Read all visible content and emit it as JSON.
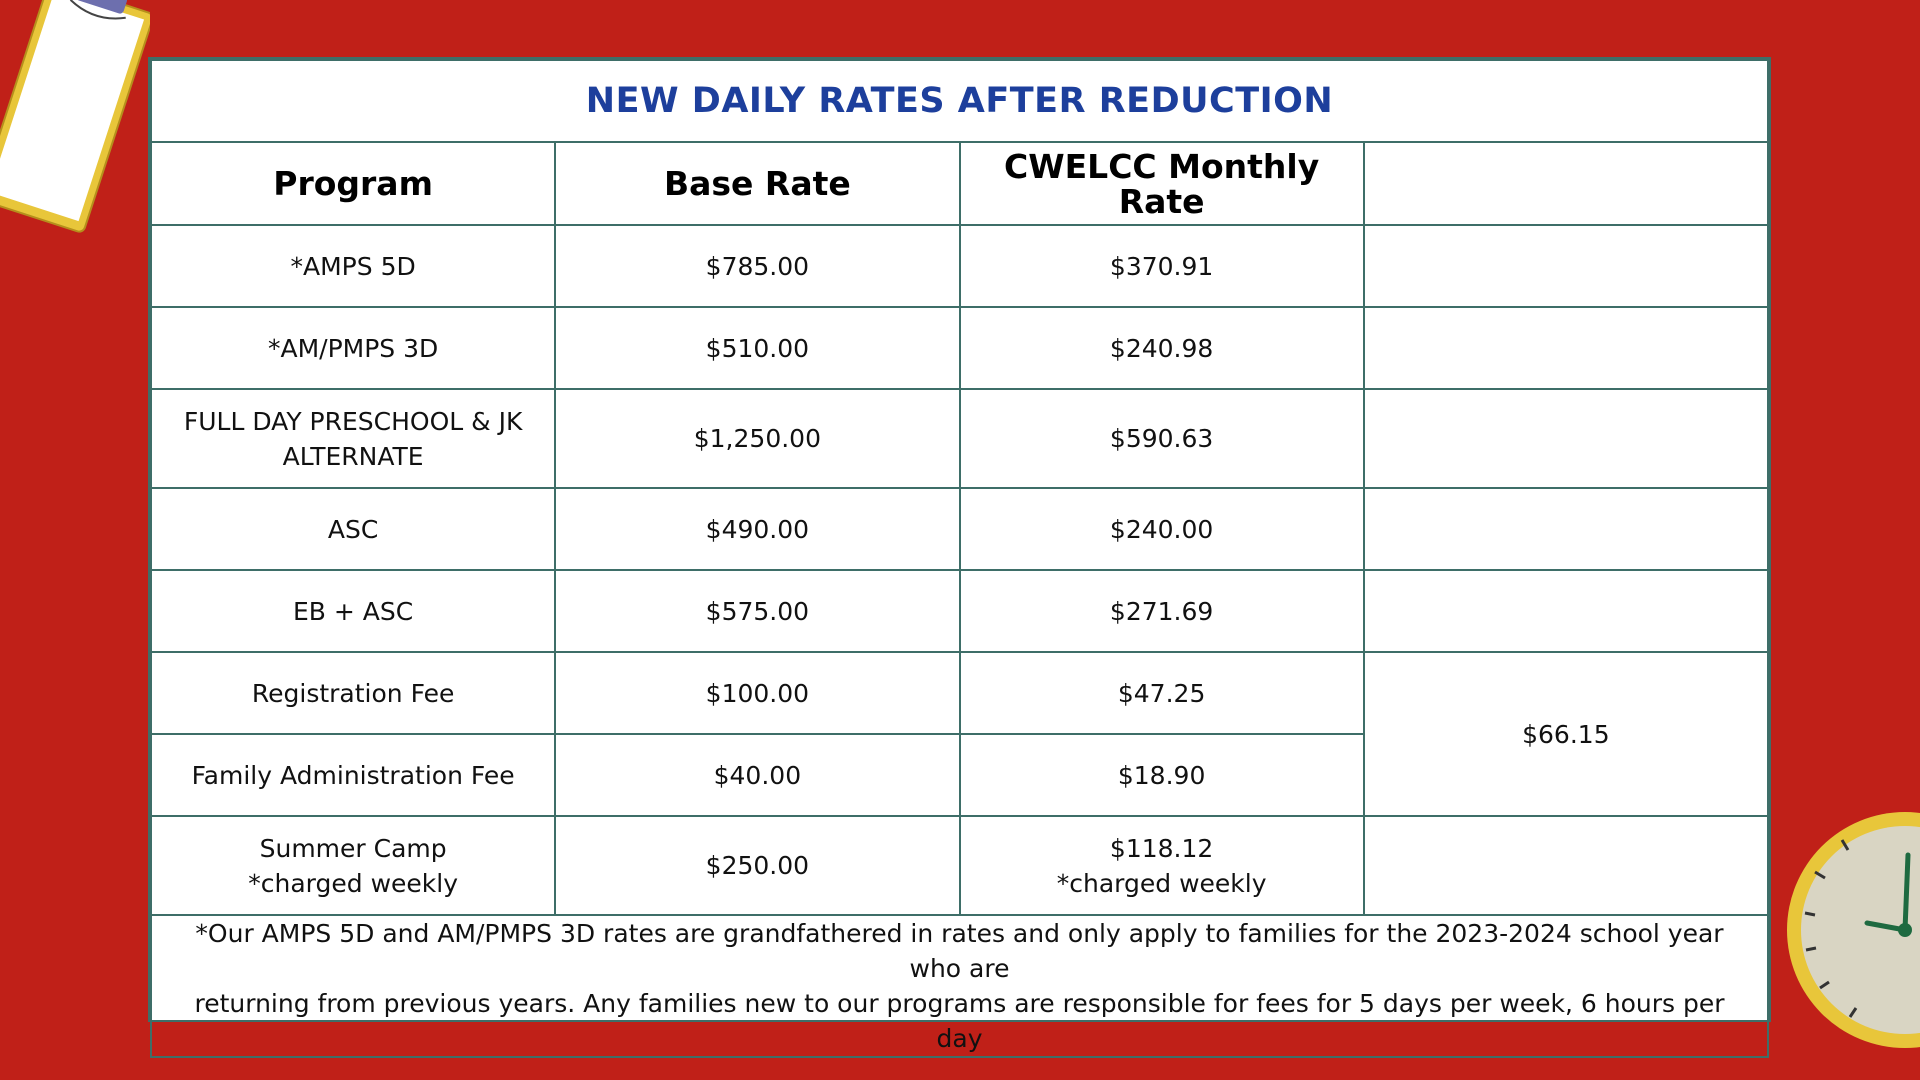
{
  "title": "NEW DAILY RATES AFTER REDUCTION",
  "headers": [
    "Program",
    "Base Rate",
    "CWELCC Monthly Rate",
    ""
  ],
  "rows": [
    {
      "program": "*AMPS 5D",
      "base": "$785.00",
      "cwelcc": "$370.91"
    },
    {
      "program": "*AM/PMPS 3D",
      "base": "$510.00",
      "cwelcc": "$240.98"
    },
    {
      "program_line1": "FULL DAY PRESCHOOL & JK",
      "program_line2": "ALTERNATE",
      "base": "$1,250.00",
      "cwelcc": "$590.63"
    },
    {
      "program": "ASC",
      "base": "$490.00",
      "cwelcc": "$240.00"
    },
    {
      "program": "EB + ASC",
      "base": "$575.00",
      "cwelcc": "$271.69"
    },
    {
      "program": "Registration Fee",
      "base": "$100.00",
      "cwelcc": "$47.25"
    },
    {
      "program": "Family Administration Fee",
      "base": "$40.00",
      "cwelcc": "$18.90"
    },
    {
      "program_line1": "Summer Camp",
      "program_line2": "*charged weekly",
      "base": "$250.00",
      "cwelcc_line1": "$118.12",
      "cwelcc_line2": "*charged weekly"
    }
  ],
  "combined_fee": "$66.15",
  "footnote_line1": "*Our AMPS 5D and AM/PMPS 3D rates are grandfathered in rates and only apply to families for the 2023-2024 school year who are",
  "footnote_line2": "returning from previous years. Any families new to our programs are responsible for fees for 5 days per week, 6 hours per day",
  "colors": {
    "background": "#c02018",
    "title": "#1d3f9c",
    "border": "#3e6e68"
  },
  "icons": [
    "clipboard-icon",
    "clock-icon"
  ]
}
